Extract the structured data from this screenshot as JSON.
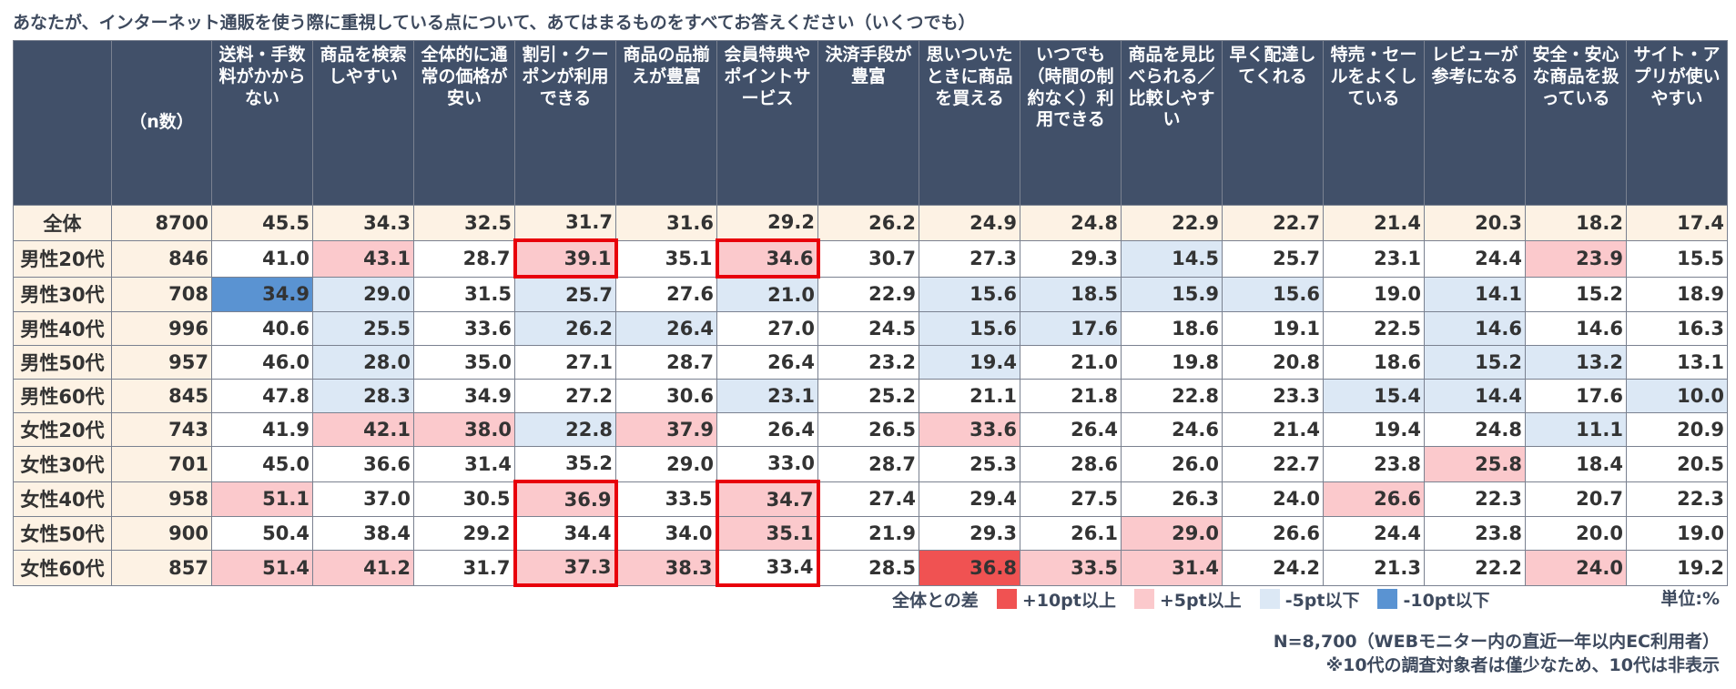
{
  "chart_data": {
    "type": "table",
    "title": "あなたが、インターネット通販を使う際に重視している点について、あてはまるものをすべてお答えください（いくつでも）",
    "n_header": "（n数）",
    "columns": [
      "送料・手数料がかからない",
      "商品を検索しやすい",
      "全体的に通常の価格が安い",
      "割引・クーポンが利用できる",
      "商品の品揃えが豊富",
      "会員特典やポイントサービス",
      "決済手段が豊富",
      "思いついたときに商品を買える",
      "いつでも（時間の制約なく）利用できる",
      "商品を見比べられる／比較しやすい",
      "早く配達してくれる",
      "特売・セールをよくしている",
      "レビューが参考になる",
      "安全・安心な商品を扱っている",
      "サイト・アプリが使いやすい"
    ],
    "rows": [
      {
        "label": "全体",
        "n": "8700",
        "values": [
          "45.5",
          "34.3",
          "32.5",
          "31.7",
          "31.6",
          "29.2",
          "26.2",
          "24.9",
          "24.8",
          "22.9",
          "22.7",
          "21.4",
          "20.3",
          "18.2",
          "17.4"
        ],
        "levels": [
          0,
          0,
          0,
          0,
          0,
          0,
          0,
          0,
          0,
          0,
          0,
          0,
          0,
          0,
          0
        ]
      },
      {
        "label": "男性20代",
        "n": "846",
        "values": [
          "41.0",
          "43.1",
          "28.7",
          "39.1",
          "35.1",
          "34.6",
          "30.7",
          "27.3",
          "29.3",
          "14.5",
          "25.7",
          "23.1",
          "24.4",
          "23.9",
          "15.5"
        ],
        "levels": [
          0,
          1,
          0,
          1,
          0,
          1,
          0,
          0,
          0,
          -1,
          0,
          0,
          0,
          1,
          0
        ]
      },
      {
        "label": "男性30代",
        "n": "708",
        "values": [
          "34.9",
          "29.0",
          "31.5",
          "25.7",
          "27.6",
          "21.0",
          "22.9",
          "15.6",
          "18.5",
          "15.9",
          "15.6",
          "19.0",
          "14.1",
          "15.2",
          "18.9"
        ],
        "levels": [
          -2,
          -1,
          0,
          -1,
          0,
          -1,
          0,
          -1,
          -1,
          -1,
          -1,
          0,
          -1,
          0,
          0
        ]
      },
      {
        "label": "男性40代",
        "n": "996",
        "values": [
          "40.6",
          "25.5",
          "33.6",
          "26.2",
          "26.4",
          "27.0",
          "24.5",
          "15.6",
          "17.6",
          "18.6",
          "19.1",
          "22.5",
          "14.6",
          "14.6",
          "16.3"
        ],
        "levels": [
          0,
          -1,
          0,
          -1,
          -1,
          0,
          0,
          -1,
          -1,
          0,
          0,
          0,
          -1,
          0,
          0
        ]
      },
      {
        "label": "男性50代",
        "n": "957",
        "values": [
          "46.0",
          "28.0",
          "35.0",
          "27.1",
          "28.7",
          "26.4",
          "23.2",
          "19.4",
          "21.0",
          "19.8",
          "20.8",
          "18.6",
          "15.2",
          "13.2",
          "13.1"
        ],
        "levels": [
          0,
          -1,
          0,
          0,
          0,
          0,
          0,
          -1,
          0,
          0,
          0,
          0,
          -1,
          -1,
          0
        ]
      },
      {
        "label": "男性60代",
        "n": "845",
        "values": [
          "47.8",
          "28.3",
          "34.9",
          "27.2",
          "30.6",
          "23.1",
          "25.2",
          "21.1",
          "21.8",
          "22.8",
          "23.3",
          "15.4",
          "14.4",
          "17.6",
          "10.0"
        ],
        "levels": [
          0,
          -1,
          0,
          0,
          0,
          -1,
          0,
          0,
          0,
          0,
          0,
          -1,
          -1,
          0,
          -1
        ]
      },
      {
        "label": "女性20代",
        "n": "743",
        "values": [
          "41.9",
          "42.1",
          "38.0",
          "22.8",
          "37.9",
          "26.4",
          "26.5",
          "33.6",
          "26.4",
          "24.6",
          "21.4",
          "19.4",
          "24.8",
          "11.1",
          "20.9"
        ],
        "levels": [
          0,
          1,
          1,
          -1,
          1,
          0,
          0,
          1,
          0,
          0,
          0,
          0,
          0,
          -1,
          0
        ]
      },
      {
        "label": "女性30代",
        "n": "701",
        "values": [
          "45.0",
          "36.6",
          "31.4",
          "35.2",
          "29.0",
          "33.0",
          "28.7",
          "25.3",
          "28.6",
          "26.0",
          "22.7",
          "23.8",
          "25.8",
          "18.4",
          "20.5"
        ],
        "levels": [
          0,
          0,
          0,
          0,
          0,
          0,
          0,
          0,
          0,
          0,
          0,
          0,
          1,
          0,
          0
        ]
      },
      {
        "label": "女性40代",
        "n": "958",
        "values": [
          "51.1",
          "37.0",
          "30.5",
          "36.9",
          "33.5",
          "34.7",
          "27.4",
          "29.4",
          "27.5",
          "26.3",
          "24.0",
          "26.6",
          "22.3",
          "20.7",
          "22.3"
        ],
        "levels": [
          1,
          0,
          0,
          1,
          0,
          1,
          0,
          0,
          0,
          0,
          0,
          1,
          0,
          0,
          0
        ]
      },
      {
        "label": "女性50代",
        "n": "900",
        "values": [
          "50.4",
          "38.4",
          "29.2",
          "34.4",
          "34.0",
          "35.1",
          "21.9",
          "29.3",
          "26.1",
          "29.0",
          "26.6",
          "24.4",
          "23.8",
          "20.0",
          "19.0"
        ],
        "levels": [
          0,
          0,
          0,
          0,
          0,
          1,
          0,
          0,
          0,
          1,
          0,
          0,
          0,
          0,
          0
        ]
      },
      {
        "label": "女性60代",
        "n": "857",
        "values": [
          "51.4",
          "41.2",
          "31.7",
          "37.3",
          "38.3",
          "33.4",
          "28.5",
          "36.8",
          "33.5",
          "31.4",
          "24.2",
          "21.3",
          "22.2",
          "24.0",
          "19.2"
        ],
        "levels": [
          1,
          1,
          0,
          1,
          1,
          0,
          0,
          2,
          1,
          1,
          0,
          0,
          0,
          1,
          0
        ]
      }
    ],
    "highlight_boxes": [
      {
        "column": 3,
        "rows": [
          1
        ]
      },
      {
        "column": 5,
        "rows": [
          1
        ]
      },
      {
        "column": 3,
        "rows": [
          8,
          9,
          10
        ]
      },
      {
        "column": 5,
        "rows": [
          8,
          9,
          10
        ]
      }
    ]
  },
  "colors": {
    "header_bg": "#415069",
    "label_bg": "#fdf2e4",
    "plus10": "#f05252",
    "plus5": "#fbc9cc",
    "minus5": "#dce8f5",
    "minus10": "#5a93d2",
    "highlight": "#e8000b"
  },
  "legend": {
    "title": "全体との差",
    "items": [
      {
        "label": "+10pt以上",
        "color": "#f05252"
      },
      {
        "label": "+5pt以上",
        "color": "#fbc9cc"
      },
      {
        "label": "-5pt以下",
        "color": "#dce8f5"
      },
      {
        "label": "-10pt以下",
        "color": "#5a93d2"
      }
    ]
  },
  "unit": "単位:%",
  "notes": [
    "N=8,700（WEBモニター内の直近一年以内EC利用者）",
    "※10代の調査対象者は僅少なため、10代は非表示"
  ]
}
